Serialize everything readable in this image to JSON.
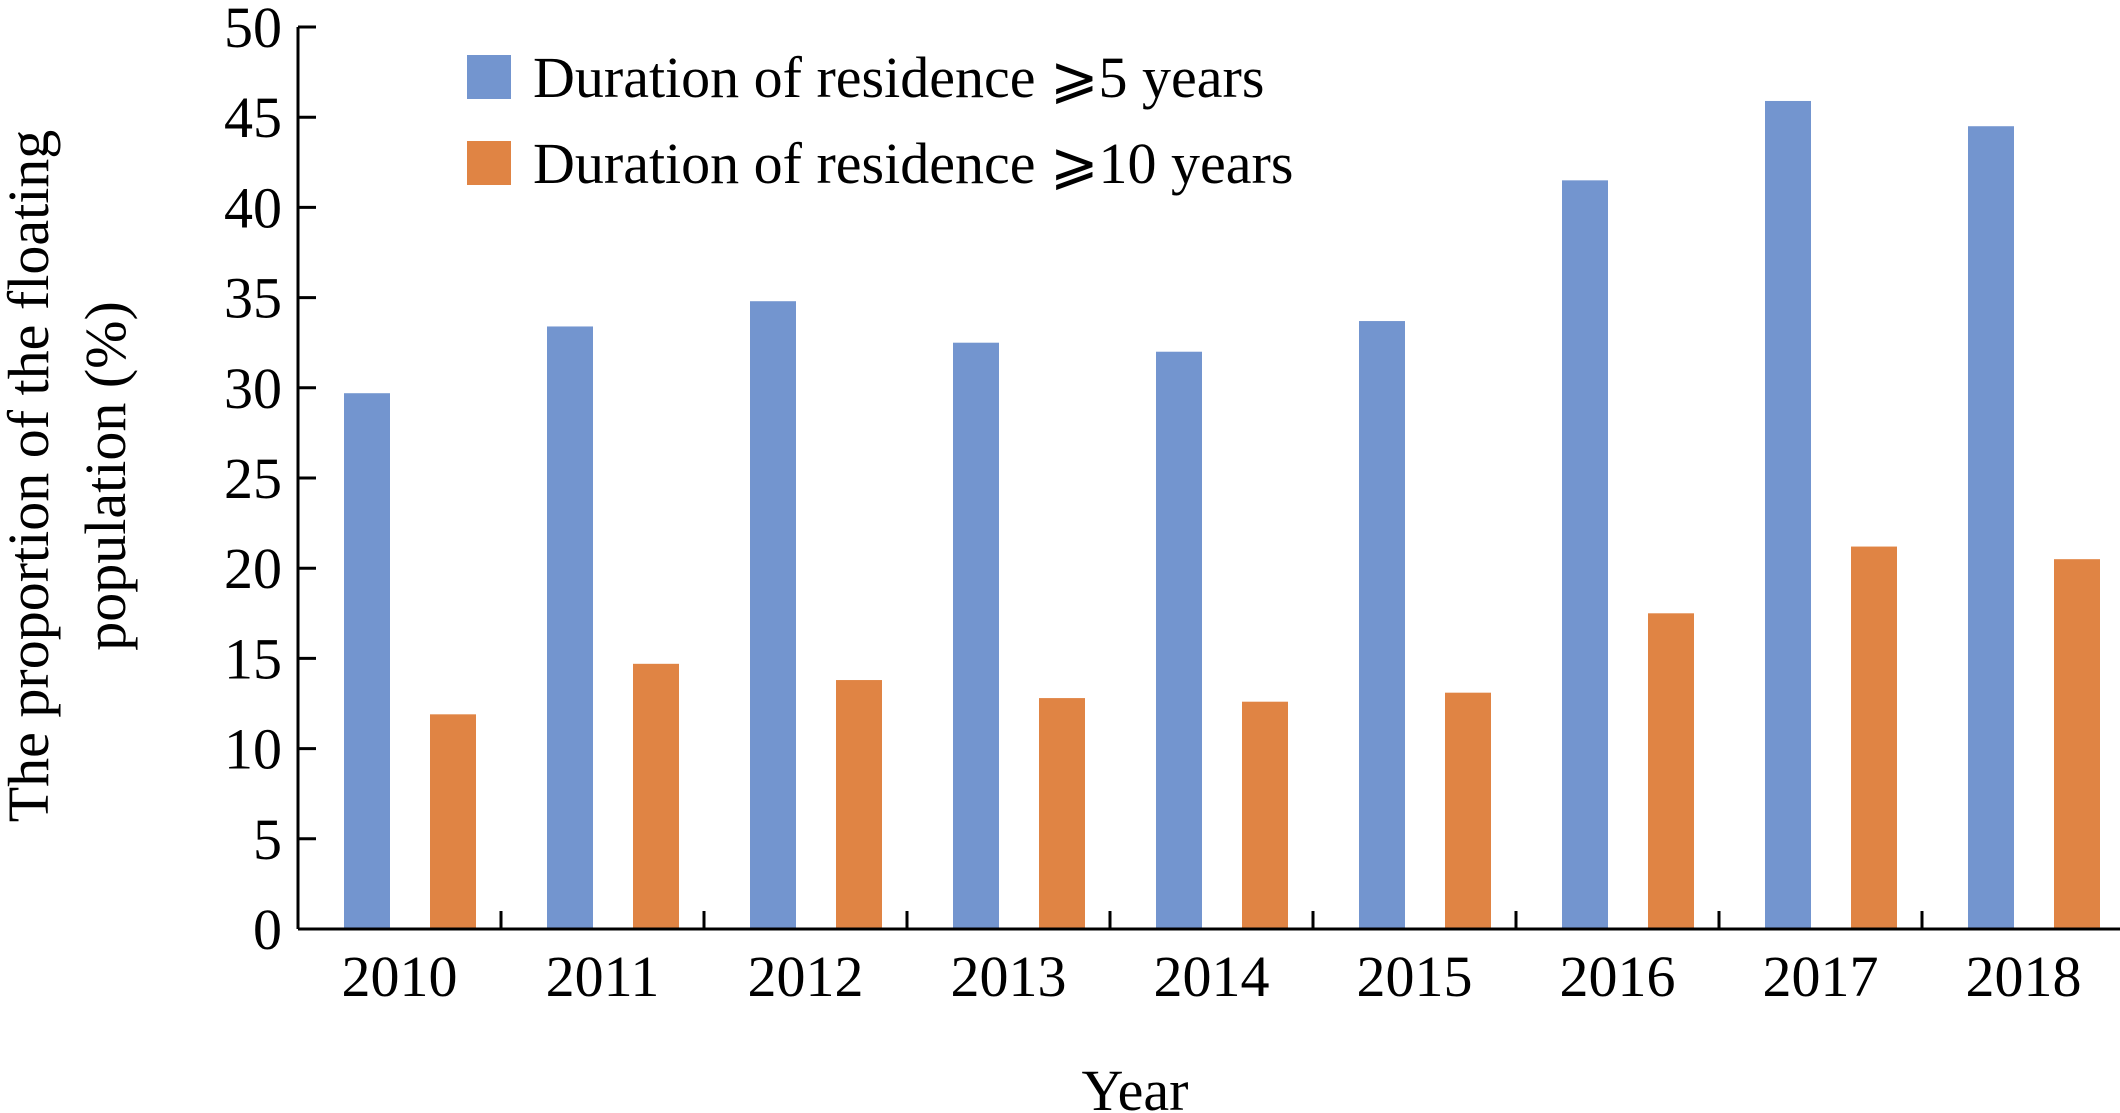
{
  "chart_data": {
    "type": "bar",
    "categories": [
      "2010",
      "2011",
      "2012",
      "2013",
      "2014",
      "2015",
      "2016",
      "2017",
      "2018"
    ],
    "series": [
      {
        "name": "Duration of residence ⩾5 years",
        "color": "#7395cf",
        "values": [
          29.7,
          33.4,
          34.8,
          32.5,
          32.0,
          33.7,
          41.5,
          45.9,
          44.5
        ]
      },
      {
        "name": "Duration of residence ⩾10 years",
        "color": "#e08444",
        "values": [
          11.9,
          14.7,
          13.8,
          12.8,
          12.6,
          13.1,
          17.5,
          21.2,
          20.5
        ]
      }
    ],
    "title": "",
    "xlabel": "Year",
    "ylabel_lines": [
      "The proportion of the floating",
      "population (%)"
    ],
    "ylim": [
      0,
      50
    ],
    "yticks": [
      0,
      5,
      10,
      15,
      20,
      25,
      30,
      35,
      40,
      45,
      50
    ],
    "grid": false,
    "legend_position": "top-left"
  }
}
